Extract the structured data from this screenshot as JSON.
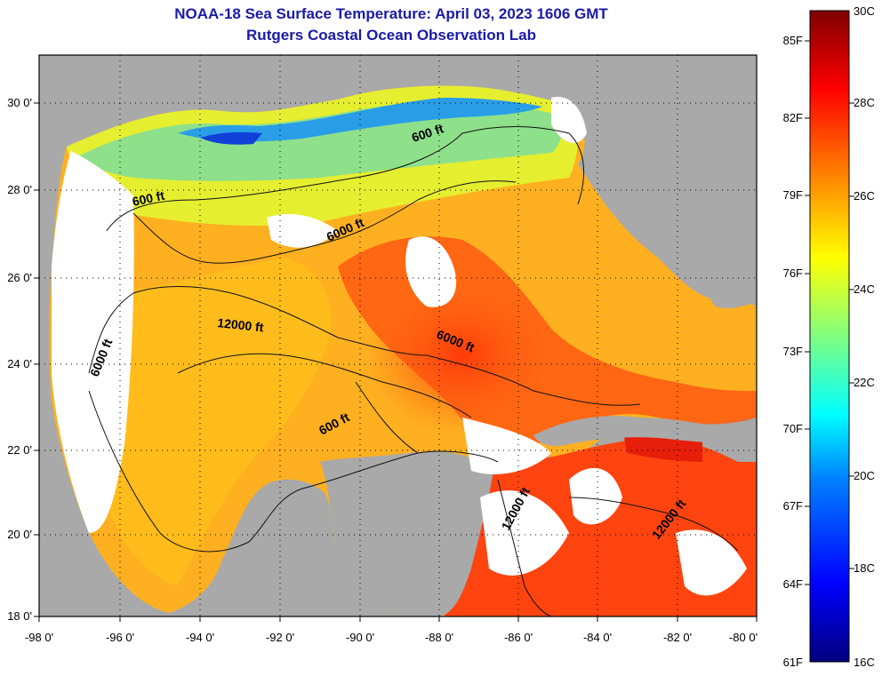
{
  "title": {
    "line1": "NOAA-18 Sea Surface Temperature:  April 03, 2023 1606 GMT",
    "line2": "Rutgers Coastal Ocean Observation Lab"
  },
  "axes": {
    "lon_labels": [
      "-98 0'",
      "-96 0'",
      "-94 0'",
      "-92 0'",
      "-90 0'",
      "-88 0'",
      "-86 0'",
      "-84 0'",
      "-82 0'",
      "-80 0'"
    ],
    "lat_labels": [
      "30 0'",
      "28 0'",
      "26 0'",
      "24 0'",
      "22 0'",
      "20 0'",
      "18 0'"
    ]
  },
  "contours": [
    {
      "text": "600 ft"
    },
    {
      "text": "600 ft"
    },
    {
      "text": "600 ft"
    },
    {
      "text": "6000 ft"
    },
    {
      "text": "6000 ft"
    },
    {
      "text": "6000 ft"
    },
    {
      "text": "12000 ft"
    },
    {
      "text": "12000 ft"
    },
    {
      "text": "12000 ft"
    }
  ],
  "colorbar": {
    "fahrenheit": [
      "85F",
      "82F",
      "79F",
      "76F",
      "73F",
      "70F",
      "67F",
      "64F",
      "61F"
    ],
    "celsius": [
      "30C",
      "28C",
      "26C",
      "24C",
      "22C",
      "20C",
      "18C",
      "16C"
    ]
  },
  "colors": {
    "title": "#1a1aa8",
    "land": "#a9a9a9",
    "cloud": "#ffffff"
  }
}
